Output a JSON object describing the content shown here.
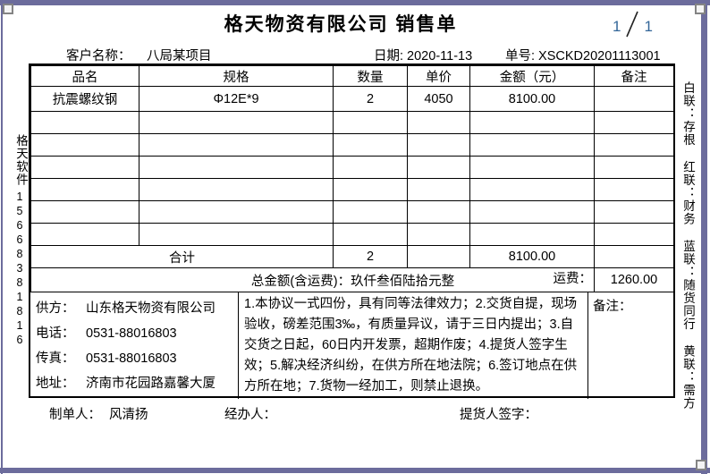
{
  "colors": {
    "frame": "#6c6c9c",
    "handle": "#848484",
    "ink": "#000000",
    "page_num": "#336699"
  },
  "header": {
    "title": "格天物资有限公司  销售单",
    "page_current": "1",
    "page_total": "1",
    "customer_label": "客户名称：",
    "customer_value": "八局某项目",
    "date_label": "日期: 2020-11-13",
    "order_label": "单号: XSCKD20201113001"
  },
  "table": {
    "columns": [
      "品名",
      "规格",
      "数量",
      "单价",
      "金额（元）",
      "备注"
    ],
    "rows": [
      {
        "name": "抗震螺纹钢",
        "spec": "Φ12E*9",
        "qty": "2",
        "price": "4050",
        "amount": "8100.00",
        "note": ""
      }
    ],
    "empty_row_count": 6,
    "total_row": {
      "label": "合计",
      "qty": "2",
      "price": "",
      "amount": "8100.00",
      "note": ""
    },
    "grand_total_row": {
      "label": "总金额(含运费)：玖仟叁佰陆拾元整",
      "freight_label": "运费：",
      "freight_value": "1260.00"
    }
  },
  "supplier": {
    "lines": [
      {
        "label": "供方：",
        "value": "山东格天物资有限公司"
      },
      {
        "label": "电话：",
        "value": "0531-88016803"
      },
      {
        "label": "传真：",
        "value": "0531-88016803"
      },
      {
        "label": "地址：",
        "value": "济南市花园路嘉馨大厦"
      }
    ]
  },
  "terms": {
    "text": "1.本协议一式四份，具有同等法律效力；2.交货自提，现场验收，磅差范围3‰，有质量异议，请于三日内提出；3.自交货之日起，60日内开发票，超期作废；4.提货人签字生效；5.解决经济纠纷，在供方所在地法院；6.签订地点在供方所在地；7.货物一经加工，则禁止退换。"
  },
  "remark": {
    "label": "备注："
  },
  "footer": {
    "maker_label": "制单人：",
    "maker_value": "风清扬",
    "handler_label": "经办人：",
    "consignee_label": "提货人签字："
  },
  "side_left": {
    "brand": "格天软件",
    "phone": "15668381816"
  },
  "side_right": {
    "copies": "白联：存根 红联：财务 蓝联：随货同行 黄联：需方"
  }
}
